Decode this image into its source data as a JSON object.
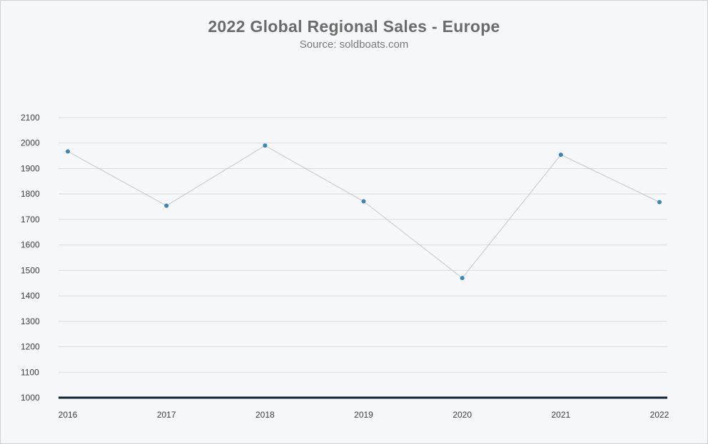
{
  "chart_data": {
    "type": "line",
    "title": "2022 Global Regional Sales - Europe",
    "subtitle": "Source: soldboats.com",
    "xlabel": "",
    "ylabel": "",
    "categories": [
      "2016",
      "2017",
      "2018",
      "2019",
      "2020",
      "2021",
      "2022"
    ],
    "series": [
      {
        "values": [
          1967,
          1754,
          1990,
          1771,
          1470,
          1954,
          1768
        ]
      }
    ],
    "ylim": [
      1000,
      2100
    ],
    "yticks": [
      2100,
      2000,
      1900,
      1800,
      1700,
      1600,
      1500,
      1400,
      1300,
      1200,
      1100,
      1000
    ],
    "grid": true,
    "legend": "none",
    "colors": {
      "line": "#c4c8cc",
      "marker": "#3a86b4",
      "grid": "#d9dcdf",
      "baseline": "#0e2236"
    }
  }
}
